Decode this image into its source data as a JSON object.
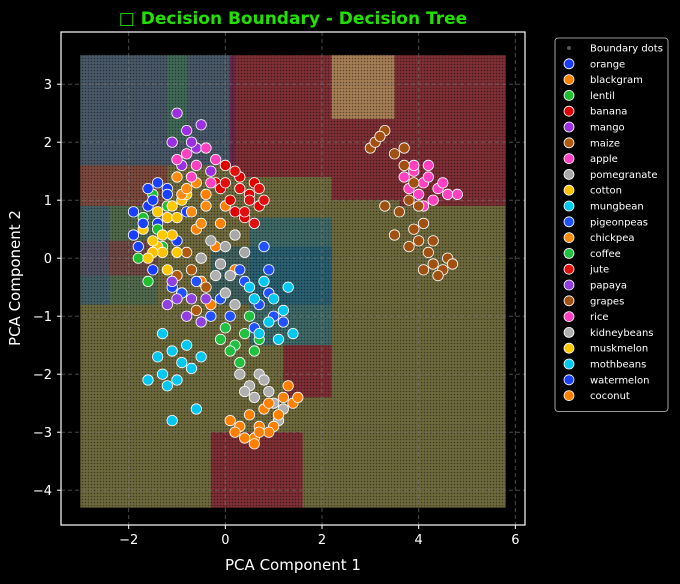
{
  "chart_data": {
    "type": "scatter",
    "title": "□ Decision Boundary - Decision Tree",
    "xlabel": "PCA Component 1",
    "ylabel": "PCA Component 2",
    "xlim": [
      -3.4,
      6.2
    ],
    "ylim": [
      -4.6,
      3.9
    ],
    "x_ticks": [
      -2,
      0,
      2,
      4,
      6
    ],
    "y_ticks": [
      -4,
      -3,
      -2,
      -1,
      0,
      1,
      2,
      3
    ],
    "grid": true,
    "legend_placement": "outside-upper-right",
    "boundary_label": "Boundary dots",
    "regions": [
      {
        "x0": -3.0,
        "x1": 5.8,
        "y0": -4.3,
        "y1": 3.5,
        "color": "#c8c070"
      },
      {
        "x0": -3.0,
        "x1": 0.2,
        "y0": 1.6,
        "y1": 3.5,
        "color": "#2a4a8a"
      },
      {
        "x0": 0.1,
        "x1": 2.2,
        "y0": 1.4,
        "y1": 3.5,
        "color": "#8a0030"
      },
      {
        "x0": 3.6,
        "x1": 5.8,
        "y0": 0.9,
        "y1": 3.5,
        "color": "#8a0030"
      },
      {
        "x0": 2.2,
        "x1": 3.6,
        "y0": 1.0,
        "y1": 3.5,
        "color": "#8a0030"
      },
      {
        "x0": 2.2,
        "x1": 3.5,
        "y0": 2.4,
        "y1": 3.5,
        "color": "#c8c070"
      },
      {
        "x0": 0.5,
        "x1": 2.2,
        "y0": -1.5,
        "y1": 0.7,
        "color": "#1a6a8a"
      },
      {
        "x0": -3.0,
        "x1": -1.4,
        "y0": -0.8,
        "y1": 0.9,
        "color": "#3a6a5a"
      },
      {
        "x0": -1.2,
        "x1": -0.8,
        "y0": 2.0,
        "y1": 3.5,
        "color": "#3a7a4a"
      },
      {
        "x0": -0.3,
        "x1": 2.2,
        "y0": -0.8,
        "y1": 0.2,
        "color": "#1a5a7a"
      },
      {
        "x0": -3.0,
        "x1": -1.2,
        "y0": 0.9,
        "y1": 1.6,
        "color": "#8a3040"
      },
      {
        "x0": -3.0,
        "x1": -1.4,
        "y0": -0.3,
        "y1": 0.3,
        "color": "#8a3040"
      },
      {
        "x0": 1.2,
        "x1": 2.2,
        "y0": -2.4,
        "y1": -1.5,
        "color": "#8a0030"
      },
      {
        "x0": -0.3,
        "x1": 1.6,
        "y0": -4.3,
        "y1": -3.0,
        "color": "#8a0030"
      },
      {
        "x0": -3.0,
        "x1": -2.4,
        "y0": -0.8,
        "y1": 0.9,
        "color": "#3a5a7a"
      }
    ],
    "series": [
      {
        "name": "orange",
        "color": "#1a3cff",
        "points": [
          [
            -1.9,
            0.4
          ],
          [
            -1.6,
            0.9
          ],
          [
            -1.4,
            0.6
          ],
          [
            -1.2,
            1.2
          ],
          [
            -1.0,
            0.3
          ],
          [
            -0.8,
            0.8
          ],
          [
            -1.5,
            -0.2
          ],
          [
            -1.1,
            -0.5
          ]
        ]
      },
      {
        "name": "blackgram",
        "color": "#ff8000",
        "points": [
          [
            -0.6,
            0.5
          ],
          [
            -0.4,
            1.1
          ],
          [
            -0.2,
            0.2
          ],
          [
            0.0,
            0.9
          ],
          [
            -0.5,
            -0.4
          ],
          [
            -0.3,
            -0.8
          ],
          [
            0.2,
            -0.2
          ],
          [
            -0.1,
            0.6
          ]
        ]
      },
      {
        "name": "lentil",
        "color": "#1fc030",
        "points": [
          [
            -1.7,
            0.7
          ],
          [
            -1.5,
            1.1
          ],
          [
            -1.8,
            0.0
          ],
          [
            -1.3,
            0.2
          ],
          [
            -1.6,
            -0.4
          ],
          [
            -1.2,
            0.9
          ],
          [
            -1.4,
            0.5
          ]
        ]
      },
      {
        "name": "banana",
        "color": "#e00000",
        "points": [
          [
            -0.2,
            1.3
          ],
          [
            0.1,
            1.0
          ],
          [
            0.3,
            1.4
          ],
          [
            0.5,
            1.1
          ],
          [
            0.0,
            1.6
          ],
          [
            0.2,
            0.8
          ],
          [
            0.4,
            0.7
          ],
          [
            -0.1,
            1.2
          ],
          [
            0.6,
            1.3
          ],
          [
            0.7,
            0.9
          ]
        ]
      },
      {
        "name": "mango",
        "color": "#9b30e0",
        "points": [
          [
            -1.0,
            2.5
          ],
          [
            -0.8,
            2.2
          ],
          [
            -0.6,
            1.9
          ],
          [
            -0.9,
            1.6
          ],
          [
            -0.5,
            2.3
          ],
          [
            -1.1,
            2.0
          ],
          [
            -0.7,
            2.0
          ],
          [
            -0.3,
            1.5
          ]
        ]
      },
      {
        "name": "maize",
        "color": "#b05a10",
        "points": [
          [
            -0.8,
            0.1
          ],
          [
            -0.5,
            0.0
          ],
          [
            -0.9,
            -0.6
          ],
          [
            -0.6,
            -0.9
          ],
          [
            -1.0,
            -0.3
          ],
          [
            -0.4,
            -0.5
          ],
          [
            -0.7,
            -0.2
          ]
        ]
      },
      {
        "name": "apple",
        "color": "#ff40c0",
        "points": [
          [
            3.7,
            1.4
          ],
          [
            3.9,
            1.5
          ],
          [
            4.1,
            1.3
          ],
          [
            4.2,
            1.6
          ],
          [
            4.4,
            1.2
          ],
          [
            4.0,
            1.1
          ],
          [
            4.3,
            1.0
          ],
          [
            3.8,
            1.2
          ],
          [
            4.5,
            1.3
          ],
          [
            4.1,
            0.9
          ],
          [
            4.6,
            1.1
          ],
          [
            3.9,
            1.6
          ],
          [
            4.2,
            1.4
          ],
          [
            4.8,
            1.1
          ]
        ]
      },
      {
        "name": "pomegranate",
        "color": "#a8a8a8",
        "points": [
          [
            -0.3,
            0.3
          ],
          [
            0.0,
            0.2
          ],
          [
            -0.1,
            -0.1
          ],
          [
            0.2,
            0.4
          ],
          [
            0.4,
            0.1
          ],
          [
            -0.5,
            0.0
          ],
          [
            0.1,
            -0.3
          ]
        ]
      },
      {
        "name": "cotton",
        "color": "#ffc000",
        "points": [
          [
            -1.2,
            0.7
          ],
          [
            -1.1,
            0.4
          ],
          [
            -0.9,
            1.0
          ],
          [
            -1.4,
            0.2
          ],
          [
            -1.3,
            0.1
          ],
          [
            -1.0,
            0.7
          ],
          [
            -0.8,
            1.1
          ],
          [
            -1.5,
            0.1
          ]
        ]
      },
      {
        "name": "mungbean",
        "color": "#00c8f0",
        "points": [
          [
            -1.3,
            -1.3
          ],
          [
            -1.1,
            -1.6
          ],
          [
            -0.9,
            -1.8
          ],
          [
            -1.2,
            -2.2
          ],
          [
            -1.0,
            -2.1
          ],
          [
            -0.7,
            -1.9
          ],
          [
            -1.4,
            -1.7
          ],
          [
            -1.6,
            -2.1
          ],
          [
            -1.1,
            -2.8
          ],
          [
            -0.6,
            -2.6
          ],
          [
            -1.3,
            -2.0
          ],
          [
            -0.8,
            -1.5
          ],
          [
            -0.5,
            -1.7
          ]
        ]
      },
      {
        "name": "pigeonpeas",
        "color": "#2050ff",
        "points": [
          [
            -0.9,
            -0.6
          ],
          [
            -0.6,
            -0.4
          ],
          [
            -0.3,
            -1.0
          ],
          [
            -0.1,
            -0.7
          ],
          [
            0.1,
            -1.0
          ],
          [
            0.4,
            -0.4
          ],
          [
            0.7,
            -0.8
          ],
          [
            0.9,
            -0.2
          ],
          [
            1.0,
            -1.0
          ],
          [
            0.6,
            -1.2
          ],
          [
            0.3,
            -0.2
          ],
          [
            0.8,
            0.2
          ],
          [
            1.2,
            -1.1
          ],
          [
            0.9,
            -0.6
          ]
        ]
      },
      {
        "name": "chickpea",
        "color": "#ff8a10",
        "points": [
          [
            -0.9,
            1.1
          ],
          [
            -0.7,
            0.8
          ],
          [
            -0.6,
            1.3
          ],
          [
            -1.0,
            1.4
          ],
          [
            -0.4,
            0.9
          ],
          [
            -0.8,
            1.2
          ],
          [
            -0.5,
            0.6
          ]
        ]
      },
      {
        "name": "coffee",
        "color": "#20c040",
        "points": [
          [
            0.0,
            -1.2
          ],
          [
            0.2,
            -1.5
          ],
          [
            0.4,
            -1.3
          ],
          [
            0.6,
            -1.6
          ],
          [
            0.3,
            -1.8
          ],
          [
            0.1,
            -1.6
          ],
          [
            0.5,
            -1.0
          ],
          [
            0.7,
            -1.4
          ],
          [
            -0.1,
            -1.4
          ]
        ]
      },
      {
        "name": "jute",
        "color": "#e01010",
        "points": [
          [
            0.0,
            1.3
          ],
          [
            0.3,
            1.2
          ],
          [
            0.5,
            1.0
          ],
          [
            0.7,
            1.2
          ],
          [
            0.4,
            0.8
          ],
          [
            0.8,
            1.0
          ],
          [
            0.2,
            1.5
          ],
          [
            0.6,
            0.6
          ]
        ]
      },
      {
        "name": "papaya",
        "color": "#9040e0",
        "points": [
          [
            -1.0,
            -0.7
          ],
          [
            -0.7,
            -0.7
          ],
          [
            -0.8,
            -1.0
          ],
          [
            -1.2,
            -0.8
          ],
          [
            -0.5,
            -1.1
          ],
          [
            -1.1,
            -0.4
          ],
          [
            -0.4,
            -0.7
          ]
        ]
      },
      {
        "name": "grapes",
        "color": "#a05010",
        "points": [
          [
            3.0,
            1.9
          ],
          [
            3.3,
            2.2
          ],
          [
            3.1,
            2.0
          ],
          [
            3.5,
            1.8
          ],
          [
            3.7,
            1.6
          ],
          [
            3.9,
            1.3
          ],
          [
            3.8,
            1.0
          ],
          [
            3.6,
            0.8
          ],
          [
            3.9,
            0.5
          ],
          [
            4.0,
            0.3
          ],
          [
            4.2,
            0.1
          ],
          [
            4.1,
            -0.2
          ],
          [
            4.3,
            -0.1
          ],
          [
            4.5,
            -0.2
          ],
          [
            4.6,
            0.0
          ],
          [
            4.4,
            -0.3
          ],
          [
            4.1,
            0.6
          ],
          [
            3.5,
            0.4
          ],
          [
            3.8,
            0.2
          ],
          [
            3.2,
            2.1
          ],
          [
            3.7,
            1.9
          ],
          [
            4.0,
            0.9
          ],
          [
            3.3,
            0.9
          ],
          [
            4.7,
            -0.1
          ],
          [
            4.3,
            0.3
          ]
        ]
      },
      {
        "name": "rice",
        "color": "#ff40c0",
        "points": [
          [
            -1.0,
            1.7
          ],
          [
            -0.6,
            1.6
          ],
          [
            -0.4,
            1.9
          ],
          [
            -0.2,
            1.7
          ],
          [
            -0.7,
            1.4
          ],
          [
            -0.3,
            1.3
          ],
          [
            -0.8,
            1.8
          ]
        ]
      },
      {
        "name": "kidneybeans",
        "color": "#b0b0b0",
        "points": [
          [
            0.3,
            -2.0
          ],
          [
            0.5,
            -2.2
          ],
          [
            0.7,
            -2.0
          ],
          [
            0.6,
            -2.4
          ],
          [
            0.9,
            -2.3
          ],
          [
            0.8,
            -2.1
          ],
          [
            0.4,
            -2.3
          ],
          [
            1.0,
            -2.5
          ],
          [
            1.2,
            -2.6
          ],
          [
            1.1,
            -2.8
          ],
          [
            0.2,
            -0.8
          ],
          [
            0.0,
            -0.6
          ],
          [
            -0.2,
            -0.3
          ]
        ]
      },
      {
        "name": "muskmelon",
        "color": "#ffc800",
        "points": [
          [
            -1.5,
            0.3
          ],
          [
            -1.3,
            0.4
          ],
          [
            -1.0,
            0.1
          ],
          [
            -1.2,
            -0.2
          ],
          [
            -1.4,
            0.8
          ],
          [
            -1.7,
            0.5
          ],
          [
            -1.1,
            0.9
          ],
          [
            -1.6,
            0.0
          ]
        ]
      },
      {
        "name": "mothbeans",
        "color": "#00c8f0",
        "points": [
          [
            0.8,
            -0.4
          ],
          [
            1.0,
            -0.7
          ],
          [
            1.2,
            -0.9
          ],
          [
            0.9,
            -1.1
          ],
          [
            1.1,
            -1.4
          ],
          [
            0.7,
            -1.3
          ],
          [
            1.3,
            -0.5
          ],
          [
            0.6,
            -0.7
          ],
          [
            1.4,
            -1.3
          ],
          [
            0.5,
            -0.5
          ]
        ]
      },
      {
        "name": "watermelon",
        "color": "#1a40ff",
        "points": [
          [
            -1.5,
            1.0
          ],
          [
            -1.7,
            0.6
          ],
          [
            -1.9,
            0.8
          ],
          [
            -1.4,
            1.3
          ],
          [
            -1.8,
            0.2
          ],
          [
            -1.2,
            1.1
          ],
          [
            -1.6,
            1.2
          ]
        ]
      },
      {
        "name": "coconut",
        "color": "#ff8000",
        "points": [
          [
            0.1,
            -2.8
          ],
          [
            0.3,
            -2.9
          ],
          [
            0.5,
            -2.7
          ],
          [
            0.7,
            -2.9
          ],
          [
            0.6,
            -3.1
          ],
          [
            0.8,
            -2.6
          ],
          [
            1.0,
            -2.9
          ],
          [
            1.2,
            -2.4
          ],
          [
            1.4,
            -2.5
          ],
          [
            0.9,
            -3.0
          ],
          [
            0.4,
            -3.1
          ],
          [
            0.2,
            -3.0
          ],
          [
            1.3,
            -2.2
          ],
          [
            1.5,
            -2.4
          ],
          [
            0.6,
            -3.2
          ],
          [
            1.1,
            -2.7
          ],
          [
            0.7,
            -3.0
          ],
          [
            0.9,
            -2.5
          ]
        ]
      }
    ]
  }
}
